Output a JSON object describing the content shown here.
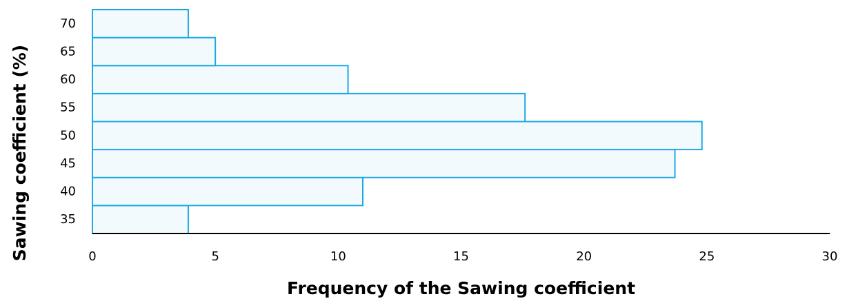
{
  "chart_data": {
    "type": "bar",
    "orientation": "horizontal",
    "categories": [
      "35",
      "40",
      "45",
      "50",
      "55",
      "60",
      "65",
      "70"
    ],
    "values": [
      3.9,
      11.0,
      23.7,
      24.8,
      17.6,
      10.4,
      5.0,
      3.9
    ],
    "title": "",
    "xlabel": "Frequency of the Sawing coefficient",
    "ylabel": "Sawing coefficient (%)",
    "xlim": [
      0,
      30
    ],
    "xticks": [
      "0",
      "5",
      "10",
      "15",
      "20",
      "25",
      "30"
    ],
    "grid": false,
    "legend": "none",
    "colors": {
      "bar_fill": "#f2fafd",
      "bar_stroke": "#1fa9e1",
      "axis": "#000000",
      "text": "#000000"
    }
  }
}
